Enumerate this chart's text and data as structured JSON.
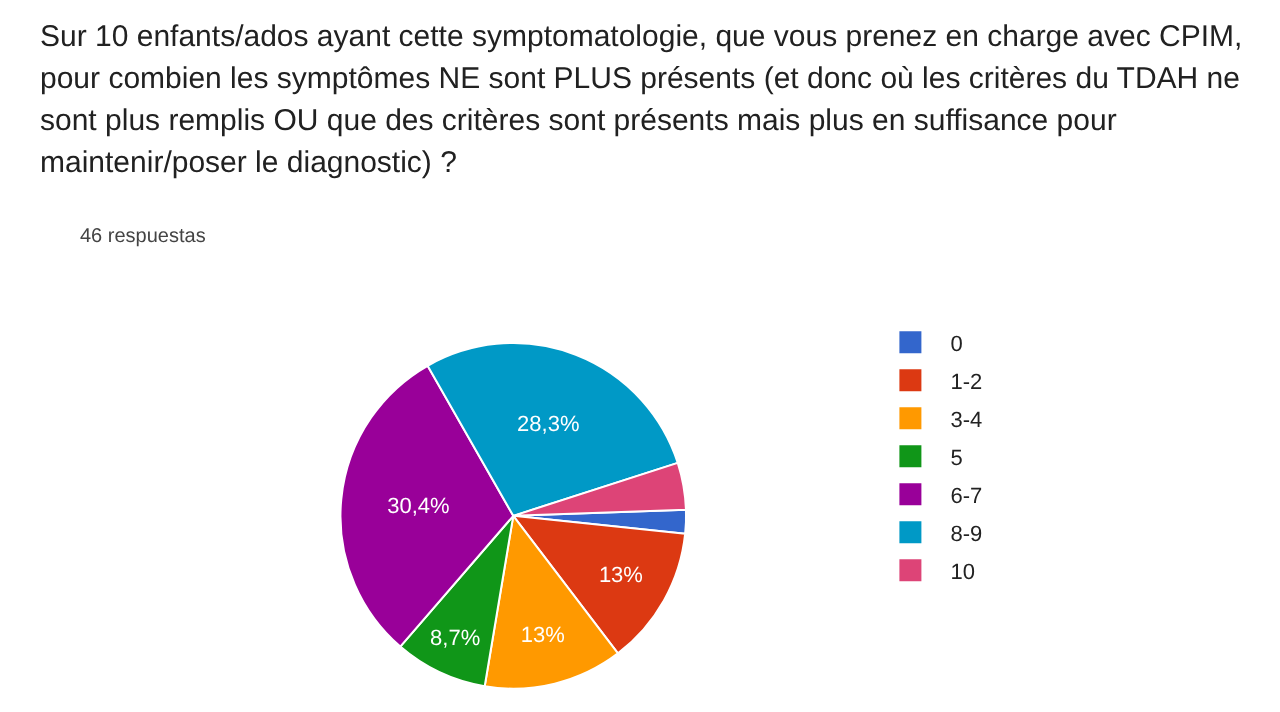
{
  "chart_data": {
    "type": "pie",
    "title": "Sur 10 enfants/ados ayant cette symptomatologie, que vous prenez en charge avec CPIM, pour combien les symptômes NE sont PLUS présents (et donc où les critères du TDAH ne sont plus remplis OU que des critères sont présents mais plus en suffisance pour maintenir/poser le diagnostic) ?",
    "subtitle": "46 respuestas",
    "categories": [
      "0",
      "1-2",
      "3-4",
      "5",
      "6-7",
      "8-9",
      "10"
    ],
    "values": [
      2.2,
      13,
      13,
      8.7,
      30.4,
      28.3,
      4.4
    ],
    "colors": [
      "#3366cc",
      "#dc3912",
      "#ff9900",
      "#109618",
      "#990099",
      "#0099c6",
      "#dd4477"
    ],
    "value_labels": [
      null,
      "13%",
      "13%",
      "8,7%",
      "30,4%",
      "28,3%",
      null
    ],
    "legend": "right"
  }
}
